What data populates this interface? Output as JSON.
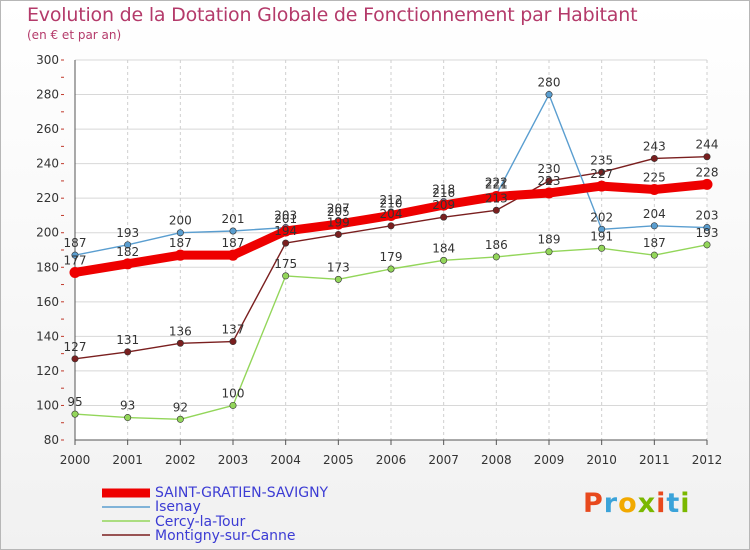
{
  "header": {
    "title": "Evolution de la Dotation Globale de Fonctionnement par Habitant",
    "subtitle": "(en € et par an)"
  },
  "logo": {
    "text": "Proxiti",
    "colors": [
      "#e8491d",
      "#3ba3d9",
      "#f2a900",
      "#7ab800",
      "#e8491d",
      "#3ba3d9",
      "#7ab800"
    ]
  },
  "chart_data": {
    "type": "line",
    "title": "Evolution de la Dotation Globale de Fonctionnement par Habitant",
    "subtitle": "(en € et par an)",
    "xlabel": "",
    "ylabel": "",
    "x": [
      2000,
      2001,
      2002,
      2003,
      2004,
      2005,
      2006,
      2007,
      2008,
      2009,
      2010,
      2011,
      2012
    ],
    "ylim": [
      80,
      300
    ],
    "yticks": [
      80,
      100,
      120,
      140,
      160,
      180,
      200,
      220,
      240,
      260,
      280,
      300
    ],
    "grid": true,
    "legend_position": "bottom-left",
    "series": [
      {
        "name": "SAINT-GRATIEN-SAVIGNY",
        "color": "#ee0000",
        "values": [
          177,
          182,
          187,
          187,
          201,
          205,
          210,
          216,
          221,
          223,
          227,
          225,
          228
        ],
        "labels": [
          "177",
          "182",
          "187",
          "187",
          "201",
          "205",
          "210",
          "216",
          "221",
          "223",
          "227",
          "225",
          "228"
        ]
      },
      {
        "name": "Isenay",
        "color": "#5a9ed0",
        "values": [
          187,
          193,
          200,
          201,
          203,
          207,
          212,
          218,
          222,
          280,
          202,
          204,
          203
        ],
        "labels": [
          "187",
          "193",
          "200",
          "201",
          "203",
          "207",
          "212",
          "218",
          "222",
          "280",
          "202",
          "204",
          "203"
        ]
      },
      {
        "name": "Cercy-la-Tour",
        "color": "#93d65a",
        "values": [
          95,
          93,
          92,
          100,
          175,
          173,
          179,
          184,
          186,
          189,
          191,
          187,
          193
        ],
        "labels": [
          "95",
          "93",
          "92",
          "100",
          "175",
          "173",
          "179",
          "184",
          "186",
          "189",
          "191",
          "187",
          "193"
        ]
      },
      {
        "name": "Montigny-sur-Canne",
        "color": "#7a1f1f",
        "values": [
          127,
          131,
          136,
          137,
          194,
          199,
          204,
          209,
          213,
          230,
          235,
          243,
          244
        ],
        "labels": [
          "127",
          "131",
          "136",
          "137",
          "194",
          "199",
          "204",
          "209",
          "213",
          "230",
          "235",
          "243",
          "244"
        ]
      }
    ]
  }
}
